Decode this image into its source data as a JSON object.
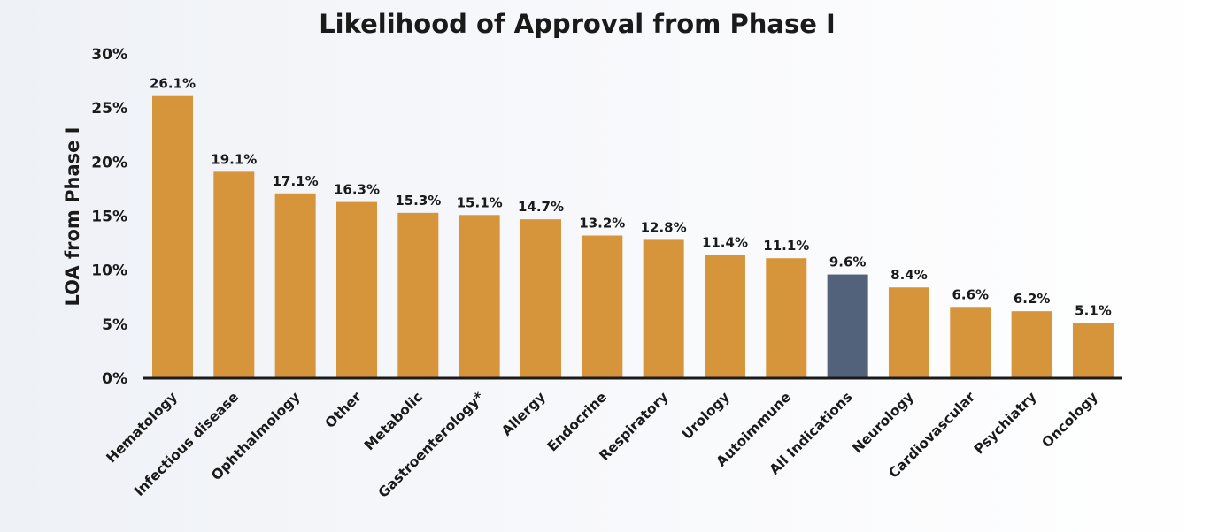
{
  "chart_data": {
    "type": "bar",
    "title": "Likelihood of Approval from Phase I",
    "xlabel": "",
    "ylabel": "LOA from Phase I",
    "ylim": [
      0,
      30
    ],
    "yticks": [
      0,
      5,
      10,
      15,
      20,
      25,
      30
    ],
    "ytick_labels": [
      "0%",
      "5%",
      "10%",
      "15%",
      "20%",
      "25%",
      "30%"
    ],
    "grid": false,
    "legend": "none",
    "categories": [
      "Hematology",
      "Infectious disease",
      "Ophthalmology",
      "Other",
      "Metabolic",
      "Gastroenterology*",
      "Allergy",
      "Endocrine",
      "Respiratory",
      "Urology",
      "Autoimmune",
      "All Indications",
      "Neurology",
      "Cardiovascular",
      "Psychiatry",
      "Oncology"
    ],
    "values": [
      26.1,
      19.1,
      17.1,
      16.3,
      15.3,
      15.1,
      14.7,
      13.2,
      12.8,
      11.4,
      11.1,
      9.6,
      8.4,
      6.6,
      6.2,
      5.1
    ],
    "data_labels": [
      "26.1%",
      "19.1%",
      "17.1%",
      "16.3%",
      "15.3%",
      "15.1%",
      "14.7%",
      "13.2%",
      "12.8%",
      "11.4%",
      "11.1%",
      "9.6%",
      "8.4%",
      "6.6%",
      "6.2%",
      "5.1%"
    ],
    "highlight_category": "All Indications"
  },
  "colors": {
    "bar": "#D6953B",
    "highlight": "#52627A",
    "axis": "#1a1a1a",
    "text": "#1a1a1a"
  }
}
